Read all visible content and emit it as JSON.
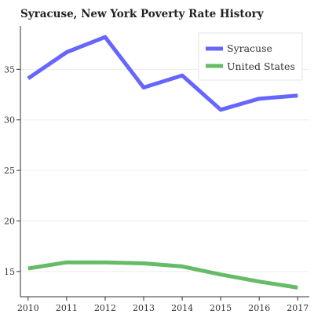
{
  "chart_data": {
    "type": "line",
    "title": "Syracuse, New York Poverty Rate History",
    "xlabel": "",
    "ylabel": "",
    "x": [
      2010,
      2011,
      2012,
      2013,
      2014,
      2015,
      2016,
      2017
    ],
    "series": [
      {
        "name": "Syracuse",
        "color": "#6666ff",
        "values": [
          34.1,
          36.7,
          38.2,
          33.2,
          34.4,
          31.0,
          32.1,
          32.4
        ]
      },
      {
        "name": "United States",
        "color": "#66bb66",
        "values": [
          15.3,
          15.9,
          15.9,
          15.8,
          15.5,
          14.7,
          14.0,
          13.4
        ]
      }
    ],
    "xlim": [
      2009.8,
      2017.3
    ],
    "ylim": [
      12.5,
      39.3
    ],
    "yticks": [
      15,
      20,
      25,
      30,
      35
    ],
    "grid": true,
    "legend": "top-right"
  }
}
